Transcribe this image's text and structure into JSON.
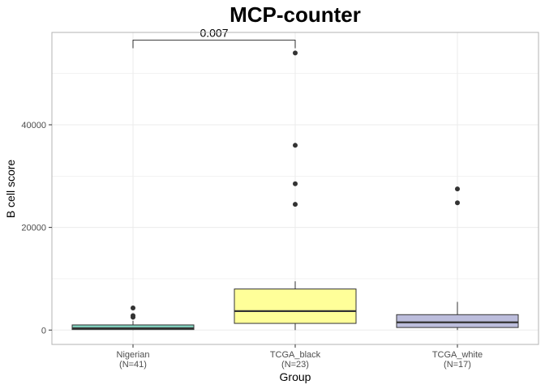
{
  "chart_data": {
    "type": "boxplot",
    "title": "MCP-counter",
    "xlabel": "Group",
    "ylabel": "B cell score",
    "ylim": [
      -2800,
      58000
    ],
    "yticks": [
      0,
      20000,
      40000
    ],
    "grid": true,
    "categories": [
      "Nigerian\n(N=41)",
      "TCGA_black\n(N=23)",
      "TCGA_white\n(N=17)"
    ],
    "category_lines": [
      [
        "Nigerian",
        "(N=41)"
      ],
      [
        "TCGA_black",
        "(N=23)"
      ],
      [
        "TCGA_white",
        "(N=17)"
      ]
    ],
    "colors": [
      "#7fcdbb",
      "#ffff99",
      "#bcbddc"
    ],
    "boxes": [
      {
        "q1": 100,
        "median": 350,
        "q3": 1000,
        "whisker_low": 0,
        "whisker_high": 1800,
        "outliers": [
          4300,
          2800,
          2500
        ]
      },
      {
        "q1": 1300,
        "median": 3700,
        "q3": 8000,
        "whisker_low": 0,
        "whisker_high": 9500,
        "outliers": [
          54000,
          36000,
          28500,
          24500
        ]
      },
      {
        "q1": 500,
        "median": 1500,
        "q3": 3000,
        "whisker_low": 0,
        "whisker_high": 5500,
        "outliers": [
          27500,
          24800
        ]
      }
    ],
    "comparisons": [
      {
        "from": 0,
        "to": 1,
        "label": "0.007",
        "y": 56500
      }
    ]
  }
}
